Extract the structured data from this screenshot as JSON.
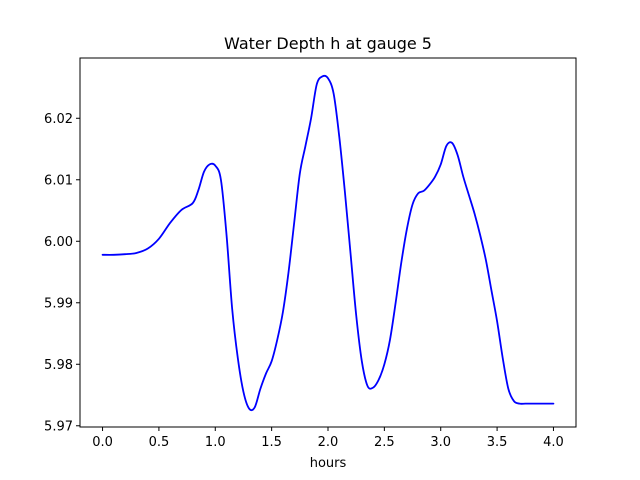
{
  "chart_data": {
    "type": "line",
    "title": "Water Depth h at gauge 5",
    "xlabel": "hours",
    "ylabel": "",
    "xlim": [
      -0.2,
      4.2
    ],
    "ylim": [
      5.9698,
      6.0298
    ],
    "xticks": [
      0.0,
      0.5,
      1.0,
      1.5,
      2.0,
      2.5,
      3.0,
      3.5,
      4.0
    ],
    "xtick_labels": [
      "0.0",
      "0.5",
      "1.0",
      "1.5",
      "2.0",
      "2.5",
      "3.0",
      "3.5",
      "4.0"
    ],
    "yticks": [
      5.97,
      5.98,
      5.99,
      6.0,
      6.01,
      6.02
    ],
    "ytick_labels": [
      "5.97",
      "5.98",
      "5.99",
      "6.00",
      "6.01",
      "6.02"
    ],
    "grid": false,
    "series": [
      {
        "color": "#0000ff",
        "x": [
          0.0,
          0.1,
          0.2,
          0.3,
          0.4,
          0.5,
          0.6,
          0.7,
          0.8,
          0.85,
          0.9,
          0.95,
          1.0,
          1.05,
          1.1,
          1.15,
          1.2,
          1.25,
          1.3,
          1.35,
          1.4,
          1.45,
          1.5,
          1.55,
          1.6,
          1.65,
          1.7,
          1.75,
          1.8,
          1.85,
          1.9,
          1.95,
          2.0,
          2.05,
          2.1,
          2.15,
          2.2,
          2.25,
          2.3,
          2.35,
          2.4,
          2.45,
          2.5,
          2.55,
          2.6,
          2.65,
          2.7,
          2.75,
          2.8,
          2.85,
          2.9,
          2.95,
          3.0,
          3.05,
          3.1,
          3.15,
          3.2,
          3.25,
          3.3,
          3.35,
          3.4,
          3.45,
          3.5,
          3.55,
          3.6,
          3.65,
          3.7,
          3.75,
          3.8,
          3.85,
          3.9,
          3.95,
          4.0
        ],
        "y": [
          5.9978,
          5.9978,
          5.9979,
          5.9981,
          5.9988,
          6.0004,
          6.003,
          6.0051,
          6.0062,
          6.0083,
          6.0113,
          6.0125,
          6.0123,
          6.01,
          6.001,
          5.989,
          5.981,
          5.9755,
          5.9728,
          5.973,
          5.976,
          5.9785,
          5.9805,
          5.984,
          5.9885,
          5.995,
          6.003,
          6.011,
          6.0155,
          6.02,
          6.0255,
          6.0268,
          6.0265,
          6.024,
          6.017,
          6.008,
          5.998,
          5.988,
          5.9805,
          5.9765,
          5.9762,
          5.9775,
          5.98,
          5.984,
          5.99,
          5.9965,
          6.002,
          6.006,
          6.0078,
          6.0082,
          6.0092,
          6.0105,
          6.0125,
          6.0155,
          6.016,
          6.014,
          6.0105,
          6.0075,
          6.0045,
          6.001,
          5.997,
          5.992,
          5.987,
          5.981,
          5.976,
          5.974,
          5.9736,
          5.9736,
          5.9736,
          5.9736,
          5.9736,
          5.9736,
          5.9736
        ]
      }
    ]
  }
}
